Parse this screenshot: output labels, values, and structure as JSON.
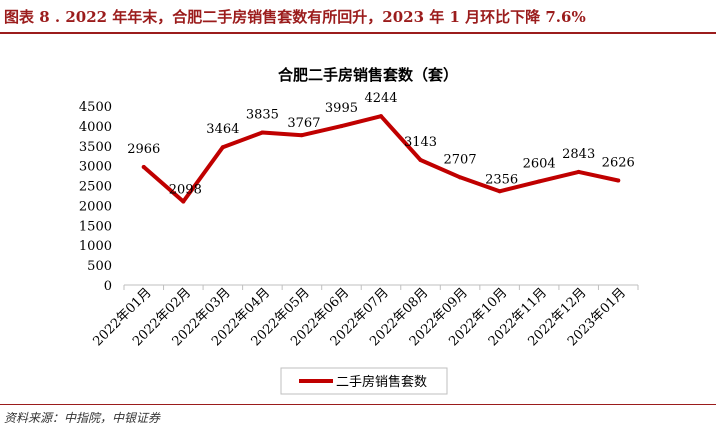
{
  "figure_title": "图表 8 . 2022 年年末，合肥二手房销售套数有所回升，2023 年 1 月环比下降 7.6%",
  "source": "资料来源：中指院，中银证券",
  "colors": {
    "line": "#c00000",
    "accent": "#9b1c1c",
    "axis": "#bfbfbf"
  },
  "chart_data": {
    "type": "line",
    "title": "合肥二手房销售套数（套）",
    "categories": [
      "2022年01月",
      "2022年02月",
      "2022年03月",
      "2022年04月",
      "2022年05月",
      "2022年06月",
      "2022年07月",
      "2022年08月",
      "2022年09月",
      "2022年10月",
      "2022年11月",
      "2022年12月",
      "2023年01月"
    ],
    "series": [
      {
        "name": "二手房销售套数",
        "values": [
          2966,
          2098,
          3464,
          3835,
          3767,
          3995,
          4244,
          3143,
          2707,
          2356,
          2604,
          2843,
          2626
        ]
      }
    ],
    "ylim": [
      0,
      4500
    ],
    "yticks": [
      0,
      500,
      1000,
      1500,
      2000,
      2500,
      3000,
      3500,
      4000,
      4500
    ],
    "grid": false,
    "legend_position": "bottom"
  }
}
